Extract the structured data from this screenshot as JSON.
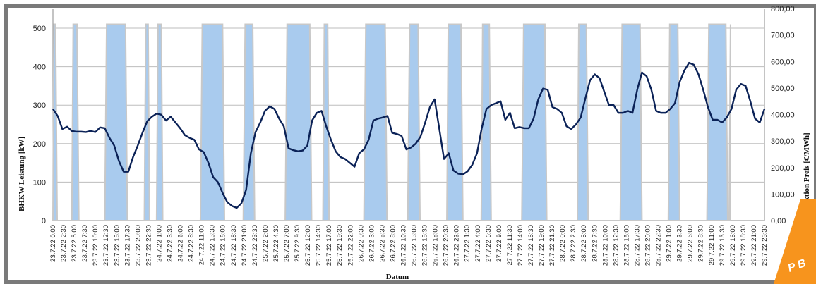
{
  "chart_data": {
    "type": "line",
    "xlabel": "Datum",
    "ylabel_left": "BHKW Leistung [kW]",
    "ylabel_right": "EPEX Spot Auktion Preis [€/MWh]",
    "ylim_left": [
      0,
      500
    ],
    "yticks_left": [
      "0",
      "100",
      "200",
      "300",
      "400",
      "500"
    ],
    "ylim_right": [
      0,
      800
    ],
    "yticks_right": [
      "0,00",
      "100,00",
      "200,00",
      "300,00",
      "400,00",
      "500,00",
      "600,00",
      "700,00",
      "800,00"
    ],
    "grid": true,
    "x_tick_labels": [
      "23.7.22 0:00",
      "23.7.22 2:30",
      "23.7.22 5:00",
      "23.7.22 7:30",
      "23.7.22 10:00",
      "23.7.22 12:30",
      "23.7.22 15:00",
      "23.7.22 17:30",
      "23.7.22 20:00",
      "23.7.22 22:30",
      "24.7.22 1:00",
      "24.7.22 3:30",
      "24.7.22 6:00",
      "24.7.22 8:30",
      "24.7.22 11:00",
      "24.7.22 13:30",
      "24.7.22 16:00",
      "24.7.22 18:30",
      "24.7.22 21:00",
      "24.7.22 23:30",
      "25.7.22 2:00",
      "25.7.22 4:30",
      "25.7.22 7:00",
      "25.7.22 9:30",
      "25.7.22 12:00",
      "25.7.22 14:30",
      "25.7.22 17:00",
      "25.7.22 19:30",
      "25.7.22 22:00",
      "26.7.22 0:30",
      "26.7.22 3:00",
      "26.7.22 5:30",
      "26.7.22 8:00",
      "26.7.22 10:30",
      "26.7.22 13:00",
      "26.7.22 15:30",
      "26.7.22 18:00",
      "26.7.22 20:30",
      "26.7.22 23:00",
      "27.7.22 1:30",
      "27.7.22 4:00",
      "27.7.22 6:30",
      "27.7.22 9:00",
      "27.7.22 11:30",
      "27.7.22 14:00",
      "27.7.22 16:30",
      "27.7.22 19:00",
      "27.7.22 21:30",
      "28.7.22 0:00",
      "28.7.22 2:30",
      "28.7.22 5:00",
      "28.7.22 7:30",
      "28.7.22 10:00",
      "28.7.22 12:30",
      "28.7.22 15:00",
      "28.7.22 17:30",
      "28.7.22 20:00",
      "28.7.22 22:30",
      "29.7.22 1:00",
      "29.7.22 3:30",
      "29.7.22 6:00",
      "29.7.22 8:30",
      "29.7.22 11:00",
      "29.7.22 13:30",
      "29.7.22 16:00",
      "29.7.22 18:30",
      "29.7.22 21:00",
      "29.7.22 23:30"
    ],
    "series": [
      {
        "axis": "left",
        "style": "filled-blocks",
        "values": [
          [
            0,
            0
          ],
          [
            0.2,
            510
          ],
          [
            0.55,
            510
          ],
          [
            0.9,
            0
          ],
          [
            4,
            0
          ],
          [
            4.3,
            510
          ],
          [
            5.1,
            510
          ],
          [
            5.5,
            0
          ],
          [
            11,
            0
          ],
          [
            11.4,
            510
          ],
          [
            15.4,
            510
          ],
          [
            15.8,
            0
          ],
          [
            19.4,
            0
          ],
          [
            19.7,
            510
          ],
          [
            20.2,
            510
          ],
          [
            20.5,
            0
          ],
          [
            22,
            0
          ],
          [
            22.3,
            510
          ],
          [
            23,
            510
          ],
          [
            23.3,
            0
          ],
          [
            31.3,
            0
          ],
          [
            31.7,
            510
          ],
          [
            36,
            510
          ],
          [
            36.4,
            0
          ],
          [
            40.4,
            0
          ],
          [
            40.8,
            510
          ],
          [
            42.4,
            510
          ],
          [
            42.8,
            0
          ],
          [
            49.3,
            0
          ],
          [
            49.7,
            510
          ],
          [
            54.5,
            510
          ],
          [
            54.9,
            0
          ],
          [
            57.3,
            0
          ],
          [
            57.6,
            510
          ],
          [
            58.3,
            510
          ],
          [
            58.6,
            0
          ],
          [
            66,
            0
          ],
          [
            66.4,
            510
          ],
          [
            70.5,
            510
          ],
          [
            70.9,
            0
          ],
          [
            75.3,
            0
          ],
          [
            75.7,
            510
          ],
          [
            77.5,
            510
          ],
          [
            77.9,
            0
          ],
          [
            83.6,
            0
          ],
          [
            83.9,
            510
          ],
          [
            86.6,
            510
          ],
          [
            87,
            0
          ],
          [
            90.9,
            0
          ],
          [
            91.2,
            510
          ],
          [
            92.6,
            510
          ],
          [
            93,
            0
          ],
          [
            99.5,
            0
          ],
          [
            99.9,
            510
          ],
          [
            104.4,
            510
          ],
          [
            104.8,
            0
          ],
          [
            111.3,
            0
          ],
          [
            111.6,
            510
          ],
          [
            113.2,
            510
          ],
          [
            113.6,
            0
          ],
          [
            120.4,
            0
          ],
          [
            120.8,
            510
          ],
          [
            124.6,
            510
          ],
          [
            125,
            0
          ],
          [
            130.6,
            0
          ],
          [
            130.9,
            510
          ],
          [
            132.6,
            510
          ],
          [
            133,
            0
          ],
          [
            138.8,
            0
          ],
          [
            139.2,
            510
          ],
          [
            142.8,
            510
          ],
          [
            143.2,
            0
          ],
          [
            143.5,
            0
          ],
          [
            143.8,
            510
          ]
        ]
      },
      {
        "axis": "left",
        "style": "line",
        "values": [
          [
            0,
            290
          ],
          [
            1,
            272
          ],
          [
            2,
            238
          ],
          [
            3,
            244
          ],
          [
            4,
            233
          ],
          [
            5,
            231
          ],
          [
            6,
            231
          ],
          [
            7,
            230
          ],
          [
            8,
            233
          ],
          [
            9,
            230
          ],
          [
            10,
            242
          ],
          [
            11,
            240
          ],
          [
            12,
            215
          ],
          [
            13,
            195
          ],
          [
            14,
            155
          ],
          [
            15,
            127
          ],
          [
            16,
            127
          ],
          [
            17,
            165
          ],
          [
            18,
            195
          ],
          [
            19,
            228
          ],
          [
            20,
            258
          ],
          [
            21,
            270
          ],
          [
            22,
            278
          ],
          [
            23,
            275
          ],
          [
            24,
            260
          ],
          [
            25,
            270
          ],
          [
            26,
            255
          ],
          [
            27,
            240
          ],
          [
            28,
            222
          ],
          [
            29,
            215
          ],
          [
            30,
            210
          ],
          [
            31,
            185
          ],
          [
            32,
            178
          ],
          [
            33,
            150
          ],
          [
            34,
            113
          ],
          [
            35,
            100
          ],
          [
            36,
            72
          ],
          [
            37,
            48
          ],
          [
            38,
            38
          ],
          [
            39,
            33
          ],
          [
            40,
            45
          ],
          [
            41,
            80
          ],
          [
            42,
            175
          ],
          [
            43,
            230
          ],
          [
            44,
            255
          ],
          [
            45,
            285
          ],
          [
            46,
            297
          ],
          [
            47,
            290
          ],
          [
            48,
            265
          ],
          [
            49,
            245
          ],
          [
            50,
            188
          ],
          [
            51,
            183
          ],
          [
            52,
            180
          ],
          [
            53,
            182
          ],
          [
            54,
            195
          ],
          [
            55,
            260
          ],
          [
            56,
            280
          ],
          [
            57,
            285
          ],
          [
            58,
            245
          ],
          [
            59,
            210
          ],
          [
            60,
            180
          ],
          [
            61,
            165
          ],
          [
            62,
            160
          ],
          [
            63,
            150
          ],
          [
            64,
            140
          ],
          [
            65,
            175
          ],
          [
            66,
            185
          ],
          [
            67,
            210
          ],
          [
            68,
            260
          ],
          [
            69,
            265
          ],
          [
            70,
            268
          ],
          [
            71,
            272
          ],
          [
            72,
            228
          ],
          [
            73,
            225
          ],
          [
            74,
            220
          ],
          [
            75,
            185
          ],
          [
            76,
            190
          ],
          [
            77,
            200
          ],
          [
            78,
            218
          ],
          [
            79,
            255
          ],
          [
            80,
            295
          ],
          [
            81,
            315
          ],
          [
            82,
            238
          ],
          [
            83,
            160
          ],
          [
            84,
            175
          ],
          [
            85,
            130
          ],
          [
            86,
            122
          ],
          [
            87,
            120
          ],
          [
            88,
            128
          ],
          [
            89,
            145
          ],
          [
            90,
            175
          ],
          [
            91,
            240
          ],
          [
            92,
            290
          ],
          [
            93,
            300
          ],
          [
            94,
            305
          ],
          [
            95,
            310
          ],
          [
            96,
            262
          ],
          [
            97,
            280
          ],
          [
            98,
            240
          ],
          [
            99,
            243
          ],
          [
            100,
            240
          ],
          [
            101,
            240
          ],
          [
            102,
            265
          ],
          [
            103,
            315
          ],
          [
            104,
            343
          ],
          [
            105,
            340
          ],
          [
            106,
            295
          ],
          [
            107,
            290
          ],
          [
            108,
            280
          ],
          [
            109,
            245
          ],
          [
            110,
            238
          ],
          [
            111,
            250
          ],
          [
            112,
            268
          ],
          [
            113,
            318
          ],
          [
            114,
            365
          ],
          [
            115,
            380
          ],
          [
            116,
            370
          ],
          [
            117,
            335
          ],
          [
            118,
            300
          ],
          [
            119,
            300
          ],
          [
            120,
            280
          ],
          [
            121,
            280
          ],
          [
            122,
            285
          ],
          [
            123,
            280
          ],
          [
            124,
            340
          ],
          [
            125,
            385
          ],
          [
            126,
            375
          ],
          [
            127,
            340
          ],
          [
            128,
            285
          ],
          [
            129,
            280
          ],
          [
            130,
            280
          ],
          [
            131,
            290
          ],
          [
            132,
            305
          ],
          [
            133,
            360
          ],
          [
            134,
            390
          ],
          [
            135,
            410
          ],
          [
            136,
            405
          ],
          [
            137,
            380
          ],
          [
            138,
            340
          ],
          [
            139,
            295
          ],
          [
            140,
            262
          ],
          [
            141,
            262
          ],
          [
            142,
            255
          ],
          [
            143,
            268
          ],
          [
            144,
            290
          ],
          [
            145,
            340
          ],
          [
            146,
            355
          ],
          [
            147,
            350
          ],
          [
            148,
            310
          ],
          [
            149,
            265
          ],
          [
            150,
            255
          ],
          [
            151,
            290
          ]
        ]
      }
    ]
  },
  "colors": {
    "bar_fill": "#a9cbee",
    "bar_edge": "#c8c8c8",
    "line": "#0b2257",
    "grid": "#bdbdbd",
    "frame": "#7a7a7a",
    "badge": "#f7941d"
  },
  "badge": {
    "text": "P B"
  }
}
